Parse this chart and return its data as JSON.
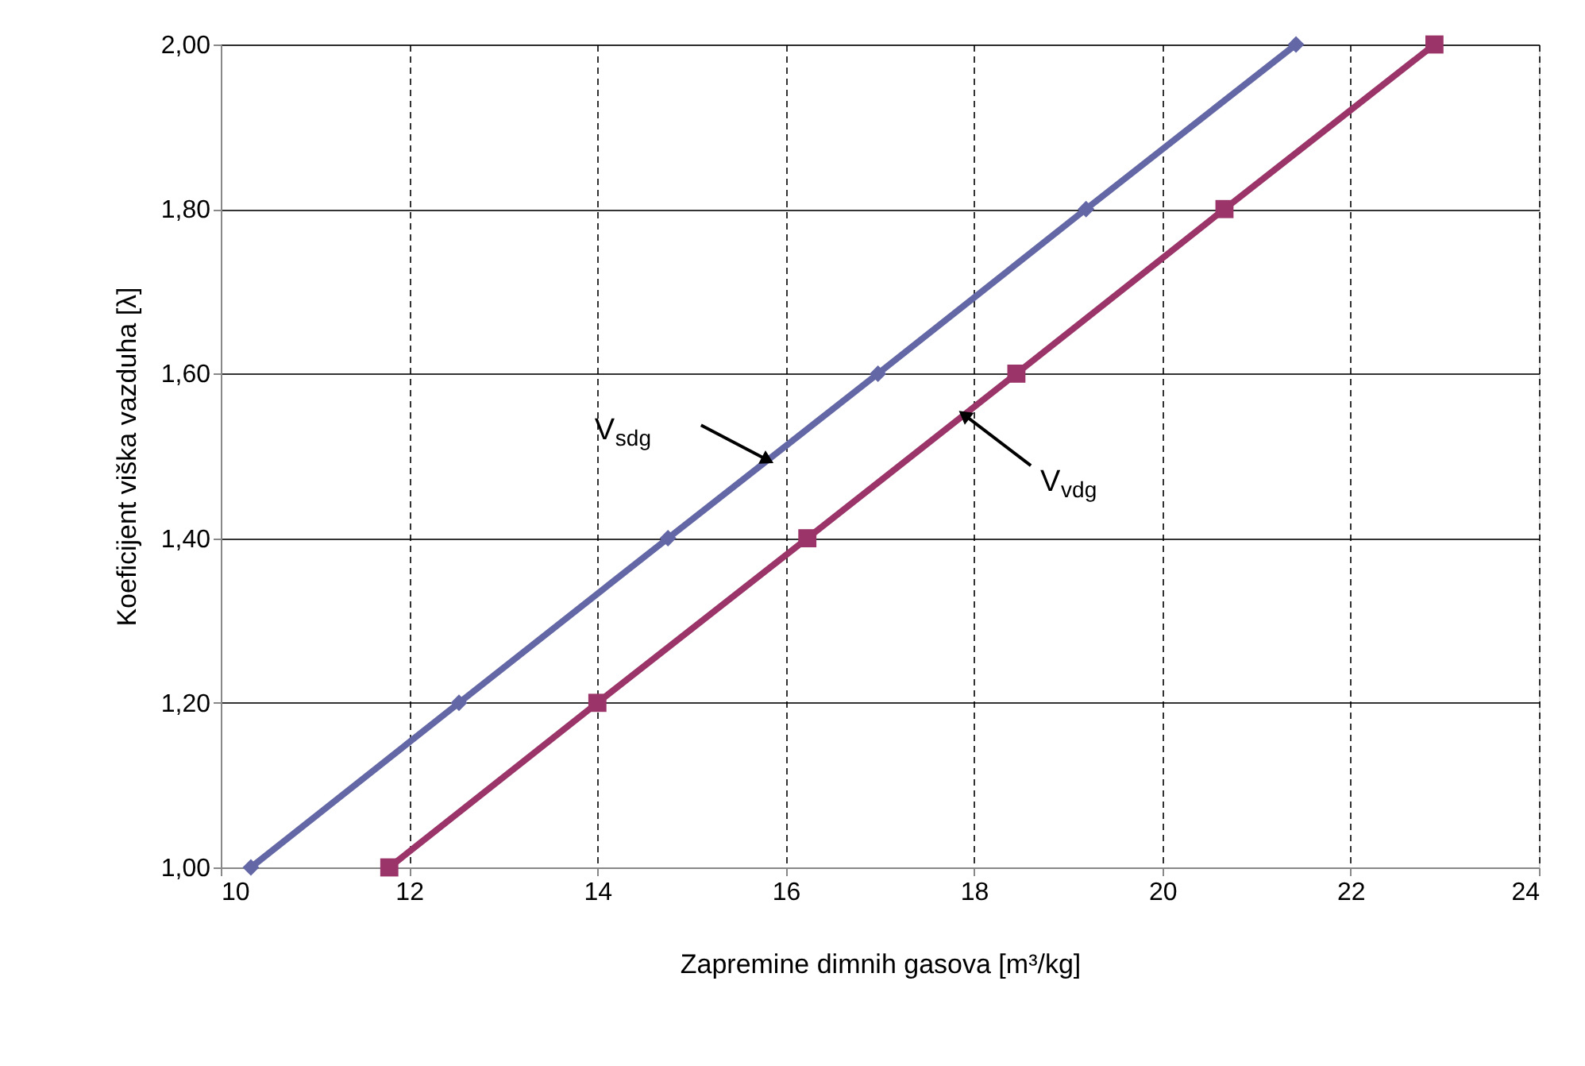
{
  "chart_data": {
    "type": "line",
    "xlabel": "Zapremine dimnih gasova [m³/kg]",
    "ylabel": "Koeficijent viška vazduha [λ]",
    "xlim": [
      10,
      24
    ],
    "xticks": [
      10,
      12,
      14,
      16,
      18,
      20,
      22,
      24
    ],
    "ylim": [
      1,
      2
    ],
    "yticks": [
      {
        "value": 1,
        "label": "1,00"
      },
      {
        "value": 1.2,
        "label": "1,20"
      },
      {
        "value": 1.4,
        "label": "1,40"
      },
      {
        "value": 1.6,
        "label": "1,60"
      },
      {
        "value": 1.8,
        "label": "1,80"
      },
      {
        "value": 2,
        "label": "2,00"
      }
    ],
    "grid": true,
    "line_style": "solid",
    "series": [
      {
        "name": "V$_{sdg}$",
        "color": "#6467a6",
        "marker": "diamond",
        "x": [
          10.32,
          12.53,
          14.75,
          16.98,
          19.19,
          21.42
        ],
        "values": [
          1.0,
          1.2,
          1.4,
          1.6,
          1.8,
          2.0
        ]
      },
      {
        "name": "V$_{vdg}$",
        "color": "#9b3468",
        "marker": "square",
        "x": [
          11.79,
          14.0,
          16.23,
          18.45,
          20.66,
          22.89
        ],
        "values": [
          1.0,
          1.2,
          1.4,
          1.6,
          1.8,
          2.0
        ]
      }
    ]
  }
}
